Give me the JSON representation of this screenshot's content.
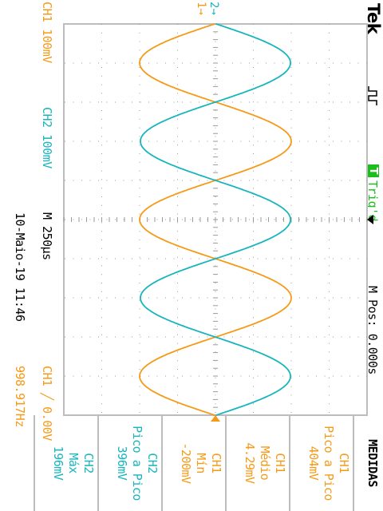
{
  "header": {
    "brand": "Tek",
    "trigger_state_letter": "T",
    "trigger_state": "Trig'd",
    "horizontal_position": "M Pos: 0.000s"
  },
  "channels": {
    "ch1_scale": "CH1  100mV",
    "ch2_scale": "CH2  100mV"
  },
  "timebase": {
    "scale": "M 250µs",
    "date": "10-Maio-19 11:46"
  },
  "trigger": {
    "setting": "CH1 ╱ 0.00V",
    "frequency": "998.917Hz"
  },
  "measurements": {
    "title": "MEDIDAS",
    "items": [
      {
        "channel": "CH1",
        "name": "Pico a Pico",
        "value": "404mV",
        "color": "#f59a17"
      },
      {
        "channel": "CH1",
        "name": "Médio",
        "value": "4.29mV",
        "color": "#f59a17"
      },
      {
        "channel": "CH1",
        "name": "Mín",
        "value": "-200mV",
        "color": "#f59a17"
      },
      {
        "channel": "CH2",
        "name": "Pico a Pico",
        "value": "396mV",
        "color": "#17b5bd"
      },
      {
        "channel": "CH2",
        "name": "Máx",
        "value": "196mV",
        "color": "#17b5bd"
      }
    ]
  },
  "markers": {
    "ch2_ground": "2→",
    "ch1_ground": "1→"
  },
  "colors": {
    "ch1": "#f59a17",
    "ch2": "#17b5bd",
    "trig_box": "#1bbf1b"
  },
  "chart_data": {
    "type": "line",
    "title": "",
    "xlabel": "",
    "ylabel": "",
    "x_unit": "s",
    "y_unit": "V",
    "xlim": [
      -0.00125,
      0.00125
    ],
    "ylim": [
      -0.4,
      0.4
    ],
    "grid": true,
    "series": [
      {
        "name": "CH1",
        "color": "#f59a17",
        "amplitude": 0.2,
        "frequency": 998.917,
        "phase_deg": 180
      },
      {
        "name": "CH2",
        "color": "#17b5bd",
        "amplitude": 0.198,
        "frequency": 998.917,
        "phase_deg": 0
      }
    ]
  }
}
